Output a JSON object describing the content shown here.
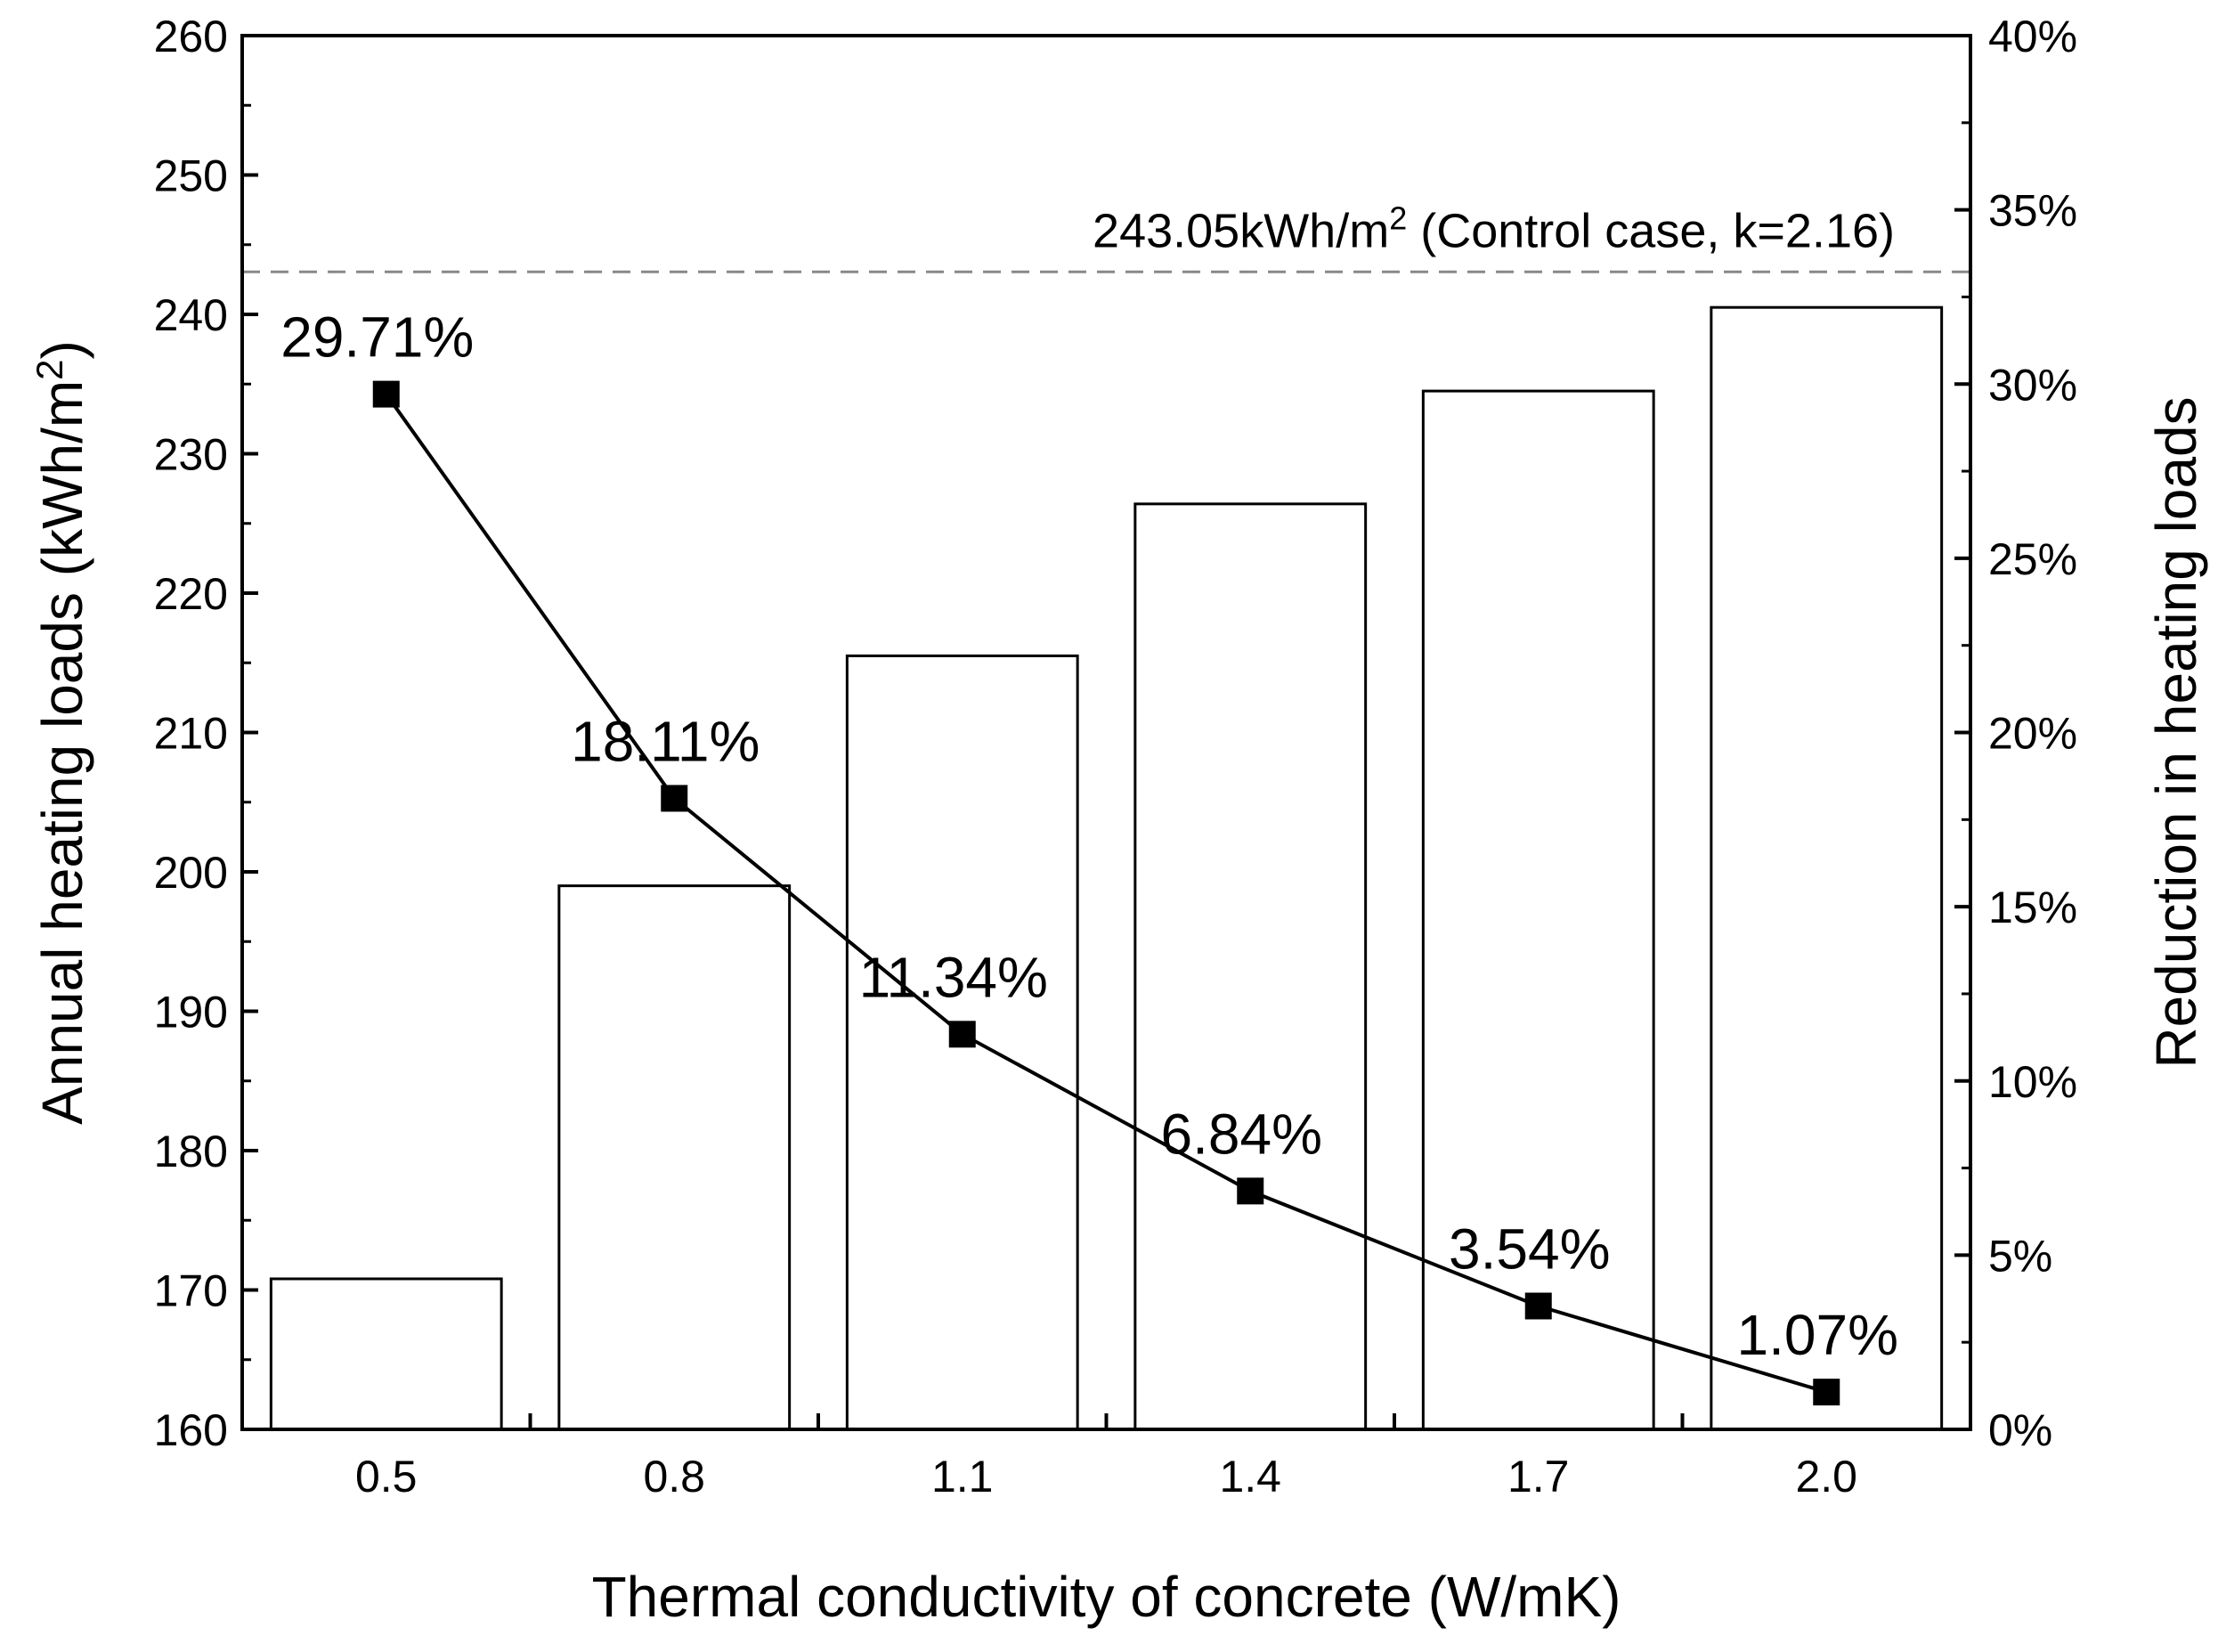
{
  "chart_data": {
    "type": "bar+line",
    "x_title": "Thermal conductivity of concrete (W/mK)",
    "y_left_title": "Annual heating loads (kWh/m",
    "y_left_title_sup": "2",
    "y_left_title_end": ")",
    "y_right_title": "Reduction in heating loads",
    "categories": [
      "0.5",
      "0.8",
      "1.1",
      "1.4",
      "1.7",
      "2.0"
    ],
    "bar_series": {
      "name": "Annual heating loads",
      "values": [
        170.8,
        199.0,
        215.5,
        226.4,
        234.5,
        240.5
      ]
    },
    "line_series": {
      "name": "Reduction in heating loads",
      "values": [
        29.71,
        18.11,
        11.34,
        6.84,
        3.54,
        1.07
      ],
      "labels": [
        "29.71%",
        "18.11%",
        "11.34%",
        "6.84%",
        "3.54%",
        "1.07%"
      ]
    },
    "y_left_range": [
      160,
      260
    ],
    "y_left_ticks": [
      "160",
      "170",
      "180",
      "190",
      "200",
      "210",
      "220",
      "230",
      "240",
      "250",
      "260"
    ],
    "y_right_range": [
      0,
      40
    ],
    "y_right_ticks": [
      "0%",
      "5%",
      "10%",
      "15%",
      "20%",
      "25%",
      "30%",
      "35%",
      "40%"
    ],
    "reference": {
      "value": 243.05,
      "label_main": "243.05kWh/m",
      "label_sup": "2",
      "label_end": " (Control case, k=2.16)"
    }
  }
}
